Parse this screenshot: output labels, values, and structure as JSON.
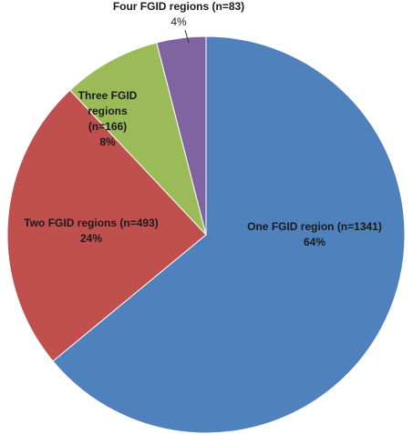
{
  "chart_data": {
    "type": "pie",
    "categories": [
      "One FGID region (n=1341)",
      "Two FGID regions (n=493)",
      "Three FGID regions (n=166)",
      "Four FGID regions (n=83)"
    ],
    "values": [
      64,
      24,
      8,
      4
    ],
    "value_labels": [
      "64%",
      "24%",
      "8%",
      "4%"
    ],
    "colors": [
      "#4f81bd",
      "#c0504d",
      "#9bbb59",
      "#8064a2"
    ]
  }
}
